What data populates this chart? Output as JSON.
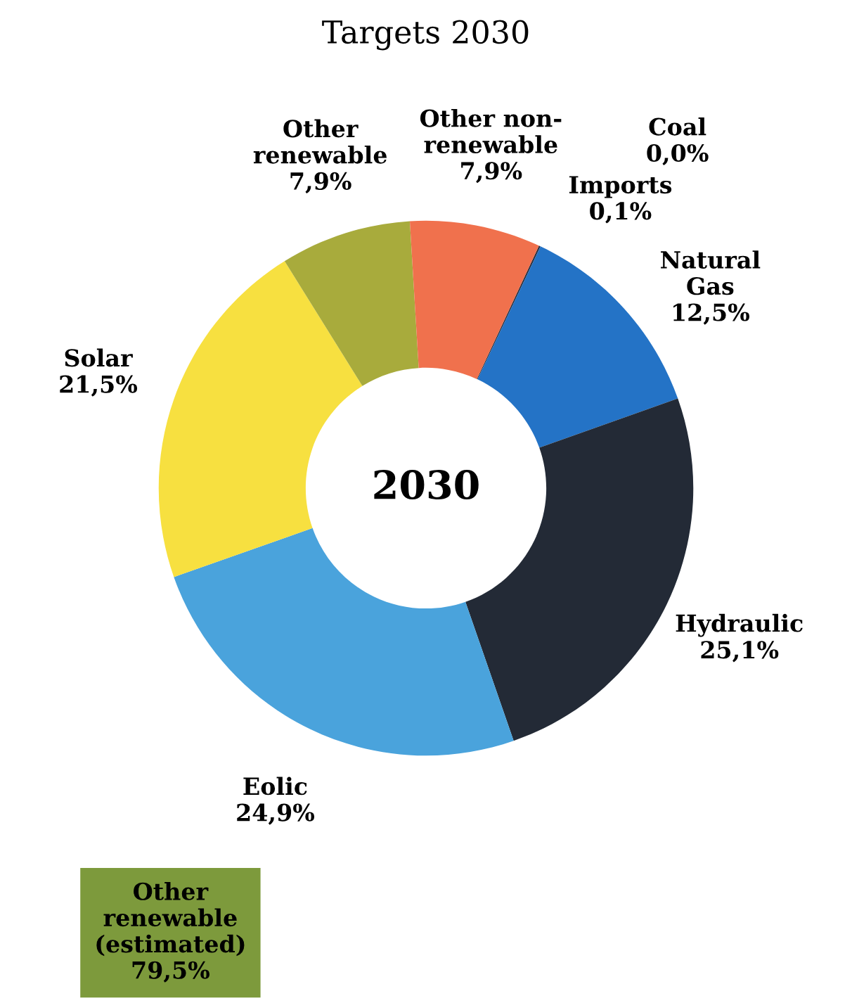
{
  "chart_data": {
    "type": "donut",
    "title": "Targets 2030",
    "categories": [
      "Coal",
      "Imports",
      "Natural\nGas",
      "Hydraulic",
      "Eolic",
      "Solar",
      "Other\nrenewable",
      "Other non-\nrenewable"
    ],
    "values": [
      0.0,
      0.1,
      12.5,
      25.1,
      24.9,
      21.5,
      7.9,
      7.9
    ],
    "value_labels": [
      "0,0%",
      "0,1%",
      "12,5%",
      "25,1%",
      "24,9%",
      "21,5%",
      "7,9%",
      "7,9%"
    ],
    "colors": [
      "#3a3a3a",
      "#2a3040",
      "#2473c6",
      "#232a36",
      "#4aa3dc",
      "#f7e040",
      "#a8ab3c",
      "#f0714d"
    ],
    "annotations": [
      "2030",
      "Other\nrenewable\n(estimated)\n79,5%"
    ],
    "legend": false
  }
}
